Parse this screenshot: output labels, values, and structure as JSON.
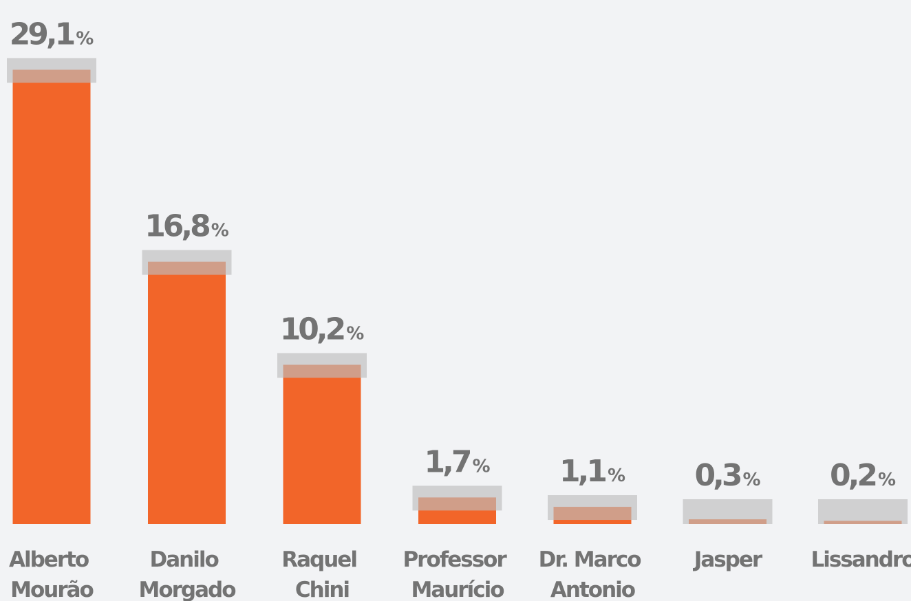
{
  "chart_data": {
    "type": "bar",
    "categories": [
      "Alberto Mourão",
      "Danilo Morgado",
      "Raquel Chini",
      "Professor Maurício",
      "Dr. Marco Antonio",
      "Jasper",
      "Lissandro"
    ],
    "values": [
      29.1,
      16.8,
      10.2,
      1.7,
      1.1,
      0.3,
      0.2
    ],
    "value_labels": [
      "29,1%",
      "16,8%",
      "10,2%",
      "1,7%",
      "1,1%",
      "0,3%",
      "0,2%"
    ],
    "color": "#f26529",
    "ylim": [
      0,
      30
    ]
  }
}
